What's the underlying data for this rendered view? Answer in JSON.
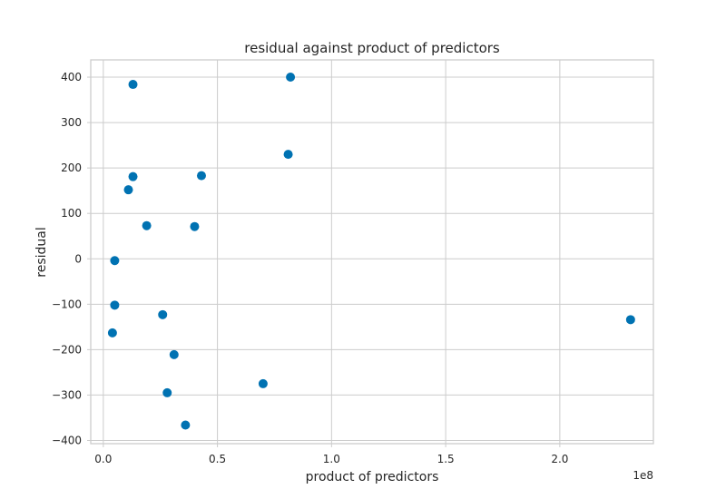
{
  "chart_data": {
    "type": "scatter",
    "title": "residual against product of predictors",
    "xlabel": "product of predictors",
    "ylabel": "residual",
    "x_offset_label": "1e8",
    "x_ticks": [
      0.0,
      0.5,
      1.0,
      1.5,
      2.0
    ],
    "x_tick_labels": [
      "0.0",
      "0.5",
      "1.0",
      "1.5",
      "2.0"
    ],
    "y_ticks": [
      -400,
      -300,
      -200,
      -100,
      0,
      100,
      200,
      300,
      400
    ],
    "y_tick_labels": [
      "−400",
      "−300",
      "−200",
      "−100",
      "0",
      "100",
      "200",
      "300",
      "400"
    ],
    "xlim": [
      -0.055,
      2.41
    ],
    "ylim": [
      -407,
      438
    ],
    "grid": true,
    "point_color": "#0072b2",
    "series": [
      {
        "points": [
          {
            "x": 0.13,
            "y": 384
          },
          {
            "x": 0.82,
            "y": 400
          },
          {
            "x": 0.81,
            "y": 230
          },
          {
            "x": 0.13,
            "y": 181
          },
          {
            "x": 0.43,
            "y": 183
          },
          {
            "x": 0.11,
            "y": 152
          },
          {
            "x": 0.19,
            "y": 73
          },
          {
            "x": 0.4,
            "y": 71
          },
          {
            "x": 0.05,
            "y": -4
          },
          {
            "x": 0.05,
            "y": -102
          },
          {
            "x": 0.26,
            "y": -123
          },
          {
            "x": 2.31,
            "y": -134
          },
          {
            "x": 0.04,
            "y": -163
          },
          {
            "x": 0.31,
            "y": -211
          },
          {
            "x": 0.7,
            "y": -275
          },
          {
            "x": 0.28,
            "y": -295
          },
          {
            "x": 0.36,
            "y": -366
          }
        ]
      }
    ]
  }
}
